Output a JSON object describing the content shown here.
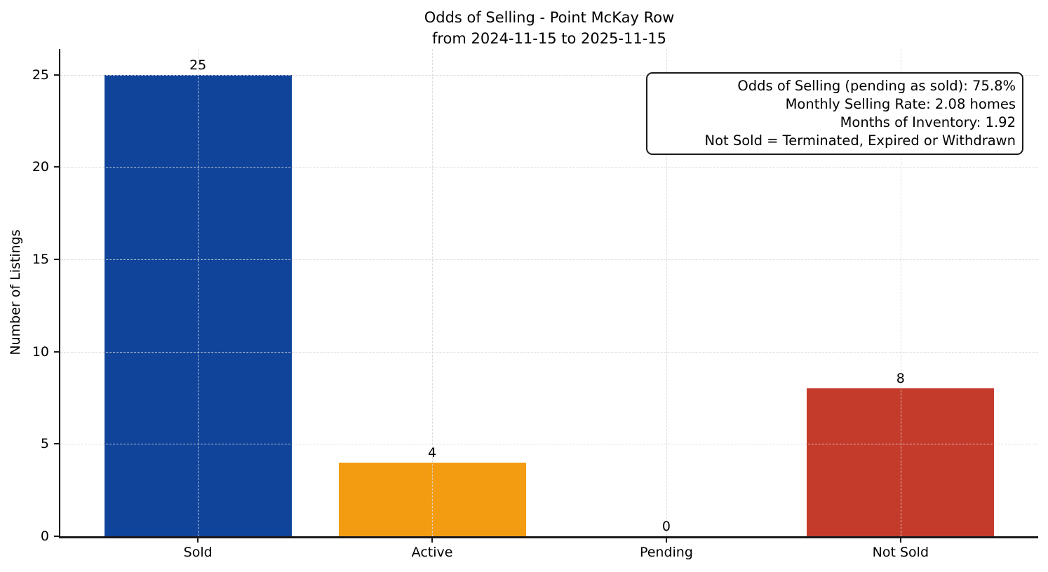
{
  "chart_data": {
    "type": "bar",
    "title": "Odds of Selling - Point McKay Row",
    "subtitle": "from 2024-11-15 to 2025-11-15",
    "categories": [
      "Sold",
      "Active",
      "Pending",
      "Not Sold"
    ],
    "values": [
      25,
      4,
      0,
      8
    ],
    "value_labels": [
      "25",
      "4",
      "0",
      "8"
    ],
    "bar_colors": [
      "#10449B",
      "#F39C12",
      "",
      "#C43B2B"
    ],
    "ylabel": "Number of Listings",
    "xlabel": "",
    "yticks": [
      0,
      5,
      10,
      15,
      20,
      25
    ],
    "ylim": [
      0,
      26.4
    ],
    "grid": "dashed horizontal and vertical gridlines, light gray, drawn over bars",
    "legend": "none",
    "annotation": {
      "lines": [
        "Odds of Selling (pending as sold): 75.8%",
        "Monthly Selling Rate: 2.08 homes",
        "Months of Inventory: 1.92",
        "Not Sold = Terminated, Expired or Withdrawn"
      ],
      "align": "right",
      "position": "top-right"
    },
    "colors": {
      "sold_bar": "#10449B",
      "active_bar": "#F39C12",
      "not_sold_bar": "#C43B2B",
      "axis": "#1a1a1a",
      "gridline": "#d6d6d6",
      "text": "#000000"
    }
  }
}
